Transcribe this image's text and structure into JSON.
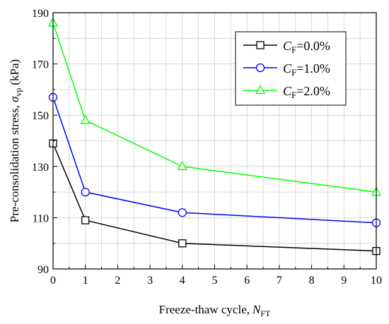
{
  "chart_data": {
    "type": "line",
    "xlabel": "Freeze-thaw cycle,",
    "xlabel_symbol": "N",
    "xlabel_sub": "FT",
    "ylabel": "Pre-consolidation stress,",
    "ylabel_symbol": "σ",
    "ylabel_sub": "vp",
    "ylabel_unit": "(kPa)",
    "xlim": [
      0,
      10
    ],
    "ylim": [
      90,
      190
    ],
    "xticks": [
      "0",
      "1",
      "2",
      "3",
      "4",
      "5",
      "6",
      "7",
      "8",
      "9",
      "10"
    ],
    "yticks": [
      "90",
      "110",
      "130",
      "150",
      "170",
      "190"
    ],
    "grid": true,
    "legend_position": "top-right",
    "x": [
      0,
      1,
      4,
      10
    ],
    "series": [
      {
        "name_symbol": "C",
        "name_sub": "F",
        "name_value": "=0.0%",
        "color": "#000000",
        "marker": "square",
        "values": [
          139,
          109,
          100,
          97
        ]
      },
      {
        "name_symbol": "C",
        "name_sub": "F",
        "name_value": "=1.0%",
        "color": "#0000ff",
        "marker": "circle",
        "values": [
          157,
          120,
          112,
          108
        ]
      },
      {
        "name_symbol": "C",
        "name_sub": "F",
        "name_value": "=2.0%",
        "color": "#00ff00",
        "marker": "triangle",
        "values": [
          186,
          148,
          130,
          120
        ]
      }
    ]
  }
}
